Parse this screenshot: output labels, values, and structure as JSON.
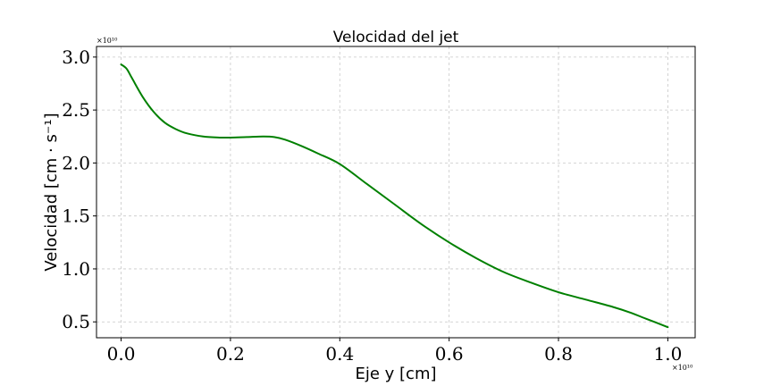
{
  "chart_data": {
    "type": "line",
    "title": "Velocidad del jet",
    "xlabel": "Eje y [cm]",
    "ylabel": "Velocidad [cm · s⁻¹]",
    "x_offset_label": "×10¹⁰",
    "y_offset_label": "×10¹⁰",
    "xlim": [
      -0.045,
      1.05
    ],
    "ylim": [
      0.35,
      3.1
    ],
    "xticks": [
      0.0,
      0.2,
      0.4,
      0.6,
      0.8,
      1.0
    ],
    "xtick_labels": [
      "0.0",
      "0.2",
      "0.4",
      "0.6",
      "0.8",
      "1.0"
    ],
    "yticks": [
      0.5,
      1.0,
      1.5,
      2.0,
      2.5,
      3.0
    ],
    "ytick_labels": [
      "0.5",
      "1.0",
      "1.5",
      "2.0",
      "2.5",
      "3.0"
    ],
    "grid": true,
    "legend": "none",
    "series": [
      {
        "color": "#008000",
        "x": [
          0.0,
          0.01,
          0.02,
          0.04,
          0.06,
          0.08,
          0.1,
          0.12,
          0.15,
          0.18,
          0.2,
          0.23,
          0.26,
          0.28,
          0.3,
          0.33,
          0.36,
          0.4,
          0.45,
          0.5,
          0.55,
          0.6,
          0.65,
          0.7,
          0.75,
          0.8,
          0.85,
          0.9,
          0.93,
          0.96,
          1.0
        ],
        "y": [
          2.93,
          2.89,
          2.8,
          2.62,
          2.48,
          2.38,
          2.32,
          2.28,
          2.25,
          2.24,
          2.24,
          2.245,
          2.25,
          2.245,
          2.22,
          2.16,
          2.09,
          1.99,
          1.8,
          1.61,
          1.42,
          1.25,
          1.1,
          0.97,
          0.87,
          0.78,
          0.71,
          0.64,
          0.59,
          0.53,
          0.45
        ]
      }
    ]
  }
}
